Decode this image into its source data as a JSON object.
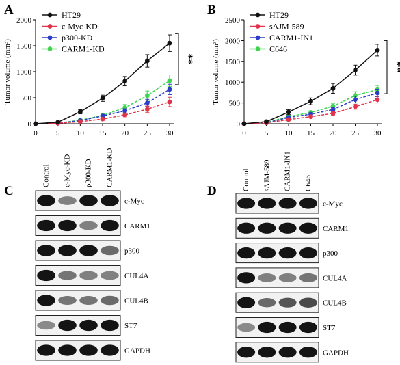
{
  "figure": {
    "panels": {
      "A": {
        "letter": "A"
      },
      "B": {
        "letter": "B"
      },
      "C": {
        "letter": "C"
      },
      "D": {
        "letter": "D"
      }
    }
  },
  "chart_data": [
    {
      "type": "line",
      "panel": "A",
      "ylabel": "Tumor volume (mm³)",
      "xlabel": "",
      "x": [
        0,
        5,
        10,
        15,
        20,
        25,
        30
      ],
      "xticks": [
        "0",
        "5",
        "10",
        "15",
        "20",
        "25",
        "30"
      ],
      "ylim": [
        0,
        2000
      ],
      "yticks": [
        "0",
        "500",
        "1000",
        "1500",
        "2000"
      ],
      "significance": "**",
      "series": [
        {
          "name": "HT29",
          "color": "#111111",
          "values": [
            0,
            30,
            230,
            490,
            820,
            1210,
            1550
          ],
          "err": [
            0,
            10,
            40,
            60,
            90,
            120,
            160
          ]
        },
        {
          "name": "c-Myc-KD",
          "color": "#e0344a",
          "values": [
            0,
            10,
            40,
            90,
            170,
            280,
            420
          ],
          "err": [
            0,
            5,
            15,
            25,
            35,
            60,
            90
          ]
        },
        {
          "name": "p300-KD",
          "color": "#2b3cc6",
          "values": [
            0,
            10,
            60,
            150,
            250,
            400,
            660
          ],
          "err": [
            0,
            5,
            20,
            30,
            40,
            70,
            100
          ]
        },
        {
          "name": "CARM1-KD",
          "color": "#3fd34f",
          "values": [
            0,
            10,
            70,
            160,
            310,
            540,
            830
          ],
          "err": [
            0,
            5,
            20,
            30,
            60,
            90,
            110
          ]
        }
      ]
    },
    {
      "type": "line",
      "panel": "B",
      "ylabel": "Tumor volume (mm³)",
      "xlabel": "",
      "x": [
        0,
        5,
        10,
        15,
        20,
        25,
        30
      ],
      "xticks": [
        "0",
        "5",
        "10",
        "15",
        "20",
        "25",
        "30"
      ],
      "ylim": [
        0,
        2500
      ],
      "yticks": [
        "0",
        "500",
        "1000",
        "1500",
        "2000",
        "2500"
      ],
      "significance": "**",
      "series": [
        {
          "name": "HT29",
          "color": "#111111",
          "values": [
            0,
            50,
            280,
            540,
            850,
            1290,
            1770
          ],
          "err": [
            0,
            15,
            60,
            80,
            120,
            120,
            140
          ]
        },
        {
          "name": "sAJM-589",
          "color": "#e0344a",
          "values": [
            0,
            20,
            100,
            170,
            250,
            410,
            580
          ],
          "err": [
            0,
            10,
            25,
            30,
            40,
            60,
            80
          ]
        },
        {
          "name": "CARM1-IN1",
          "color": "#2b3cc6",
          "values": [
            0,
            20,
            150,
            230,
            340,
            580,
            740
          ],
          "err": [
            0,
            10,
            30,
            35,
            50,
            80,
            90
          ]
        },
        {
          "name": "C646",
          "color": "#3fd34f",
          "values": [
            0,
            30,
            170,
            270,
            420,
            680,
            820
          ],
          "err": [
            0,
            10,
            35,
            40,
            60,
            90,
            100
          ]
        }
      ]
    }
  ],
  "western_C": {
    "lanes": [
      "Control",
      "c-Myc-KD",
      "p300-KD",
      "CARM1-KD"
    ],
    "proteins": [
      "c-Myc",
      "CARM1",
      "p300",
      "CUL4A",
      "CUL4B",
      "ST7",
      "GAPDH"
    ],
    "intensity": [
      [
        1.0,
        0.5,
        1.0,
        1.0
      ],
      [
        1.0,
        1.0,
        0.5,
        1.0
      ],
      [
        1.0,
        1.0,
        1.0,
        0.6
      ],
      [
        1.0,
        0.55,
        0.5,
        0.5
      ],
      [
        1.0,
        0.55,
        0.55,
        0.6
      ],
      [
        0.45,
        1.0,
        1.0,
        1.0
      ],
      [
        1.0,
        1.0,
        1.0,
        1.0
      ]
    ]
  },
  "western_D": {
    "lanes": [
      "Control",
      "sAJM-589",
      "CARM1-IN1",
      "C646"
    ],
    "proteins": [
      "c-Myc",
      "CARM1",
      "p300",
      "CUL4A",
      "CUL4B",
      "ST7",
      "GAPDH"
    ],
    "intensity": [
      [
        1.0,
        1.0,
        1.0,
        1.0
      ],
      [
        1.0,
        1.0,
        1.0,
        1.0
      ],
      [
        1.0,
        1.0,
        1.0,
        1.0
      ],
      [
        1.0,
        0.5,
        0.5,
        0.55
      ],
      [
        1.0,
        0.6,
        0.7,
        0.75
      ],
      [
        0.45,
        1.0,
        1.0,
        1.0
      ],
      [
        1.0,
        1.0,
        1.0,
        1.0
      ]
    ]
  }
}
